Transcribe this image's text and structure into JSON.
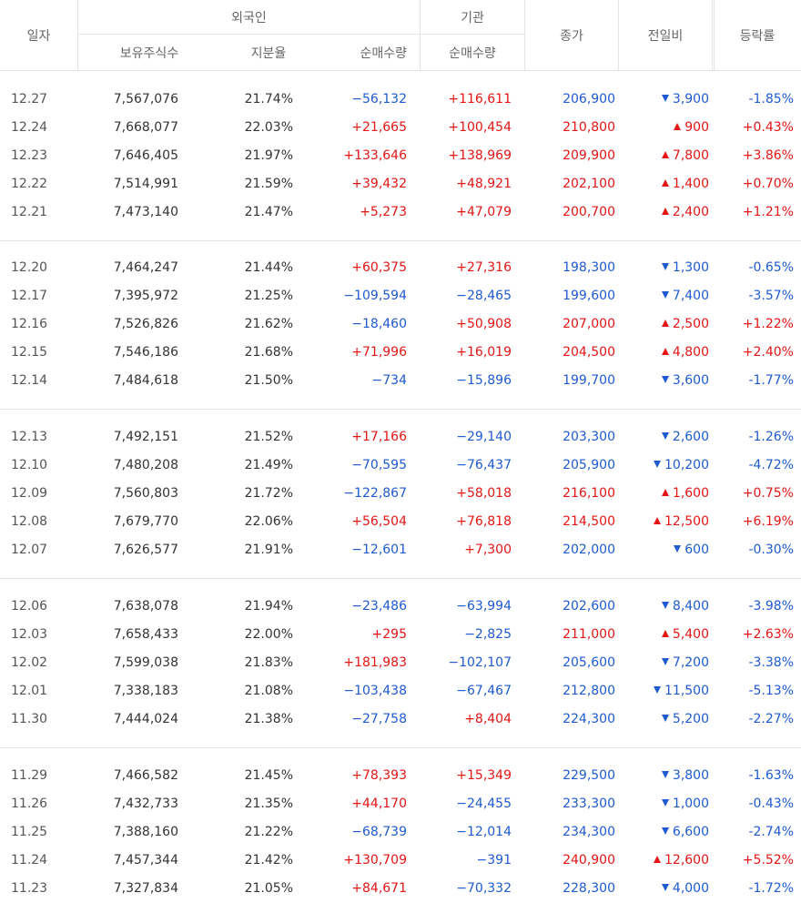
{
  "header": {
    "date": "일자",
    "foreigner_group": "외국인",
    "holdings": "보유주식수",
    "ratio": "지분율",
    "foreign_net": "순매수량",
    "institution_group": "기관",
    "inst_net": "순매수량",
    "close": "종가",
    "change": "전일비",
    "rate": "등락률"
  },
  "colors": {
    "up": "#e31515",
    "down": "#1f5ad0",
    "border": "#e5e5e5"
  },
  "groups": [
    {
      "rows": [
        {
          "date": "12.27",
          "holdings": "7,567,076",
          "ratio": "21.74%",
          "foreign_net": "−56,132",
          "inst_net": "+116,611",
          "close": "206,900",
          "dir": "down",
          "change": "3,900",
          "rate": "-1.85%"
        },
        {
          "date": "12.24",
          "holdings": "7,668,077",
          "ratio": "22.03%",
          "foreign_net": "+21,665",
          "inst_net": "+100,454",
          "close": "210,800",
          "dir": "up",
          "change": "900",
          "rate": "+0.43%"
        },
        {
          "date": "12.23",
          "holdings": "7,646,405",
          "ratio": "21.97%",
          "foreign_net": "+133,646",
          "inst_net": "+138,969",
          "close": "209,900",
          "dir": "up",
          "change": "7,800",
          "rate": "+3.86%"
        },
        {
          "date": "12.22",
          "holdings": "7,514,991",
          "ratio": "21.59%",
          "foreign_net": "+39,432",
          "inst_net": "+48,921",
          "close": "202,100",
          "dir": "up",
          "change": "1,400",
          "rate": "+0.70%"
        },
        {
          "date": "12.21",
          "holdings": "7,473,140",
          "ratio": "21.47%",
          "foreign_net": "+5,273",
          "inst_net": "+47,079",
          "close": "200,700",
          "dir": "up",
          "change": "2,400",
          "rate": "+1.21%"
        }
      ]
    },
    {
      "rows": [
        {
          "date": "12.20",
          "holdings": "7,464,247",
          "ratio": "21.44%",
          "foreign_net": "+60,375",
          "inst_net": "+27,316",
          "close": "198,300",
          "dir": "down",
          "change": "1,300",
          "rate": "-0.65%"
        },
        {
          "date": "12.17",
          "holdings": "7,395,972",
          "ratio": "21.25%",
          "foreign_net": "−109,594",
          "inst_net": "−28,465",
          "close": "199,600",
          "dir": "down",
          "change": "7,400",
          "rate": "-3.57%"
        },
        {
          "date": "12.16",
          "holdings": "7,526,826",
          "ratio": "21.62%",
          "foreign_net": "−18,460",
          "inst_net": "+50,908",
          "close": "207,000",
          "dir": "up",
          "change": "2,500",
          "rate": "+1.22%"
        },
        {
          "date": "12.15",
          "holdings": "7,546,186",
          "ratio": "21.68%",
          "foreign_net": "+71,996",
          "inst_net": "+16,019",
          "close": "204,500",
          "dir": "up",
          "change": "4,800",
          "rate": "+2.40%"
        },
        {
          "date": "12.14",
          "holdings": "7,484,618",
          "ratio": "21.50%",
          "foreign_net": "−734",
          "inst_net": "−15,896",
          "close": "199,700",
          "dir": "down",
          "change": "3,600",
          "rate": "-1.77%"
        }
      ]
    },
    {
      "rows": [
        {
          "date": "12.13",
          "holdings": "7,492,151",
          "ratio": "21.52%",
          "foreign_net": "+17,166",
          "inst_net": "−29,140",
          "close": "203,300",
          "dir": "down",
          "change": "2,600",
          "rate": "-1.26%"
        },
        {
          "date": "12.10",
          "holdings": "7,480,208",
          "ratio": "21.49%",
          "foreign_net": "−70,595",
          "inst_net": "−76,437",
          "close": "205,900",
          "dir": "down",
          "change": "10,200",
          "rate": "-4.72%"
        },
        {
          "date": "12.09",
          "holdings": "7,560,803",
          "ratio": "21.72%",
          "foreign_net": "−122,867",
          "inst_net": "+58,018",
          "close": "216,100",
          "dir": "up",
          "change": "1,600",
          "rate": "+0.75%"
        },
        {
          "date": "12.08",
          "holdings": "7,679,770",
          "ratio": "22.06%",
          "foreign_net": "+56,504",
          "inst_net": "+76,818",
          "close": "214,500",
          "dir": "up",
          "change": "12,500",
          "rate": "+6.19%"
        },
        {
          "date": "12.07",
          "holdings": "7,626,577",
          "ratio": "21.91%",
          "foreign_net": "−12,601",
          "inst_net": "+7,300",
          "close": "202,000",
          "dir": "down",
          "change": "600",
          "rate": "-0.30%"
        }
      ]
    },
    {
      "rows": [
        {
          "date": "12.06",
          "holdings": "7,638,078",
          "ratio": "21.94%",
          "foreign_net": "−23,486",
          "inst_net": "−63,994",
          "close": "202,600",
          "dir": "down",
          "change": "8,400",
          "rate": "-3.98%"
        },
        {
          "date": "12.03",
          "holdings": "7,658,433",
          "ratio": "22.00%",
          "foreign_net": "+295",
          "inst_net": "−2,825",
          "close": "211,000",
          "dir": "up",
          "change": "5,400",
          "rate": "+2.63%"
        },
        {
          "date": "12.02",
          "holdings": "7,599,038",
          "ratio": "21.83%",
          "foreign_net": "+181,983",
          "inst_net": "−102,107",
          "close": "205,600",
          "dir": "down",
          "change": "7,200",
          "rate": "-3.38%"
        },
        {
          "date": "12.01",
          "holdings": "7,338,183",
          "ratio": "21.08%",
          "foreign_net": "−103,438",
          "inst_net": "−67,467",
          "close": "212,800",
          "dir": "down",
          "change": "11,500",
          "rate": "-5.13%"
        },
        {
          "date": "11.30",
          "holdings": "7,444,024",
          "ratio": "21.38%",
          "foreign_net": "−27,758",
          "inst_net": "+8,404",
          "close": "224,300",
          "dir": "down",
          "change": "5,200",
          "rate": "-2.27%"
        }
      ]
    },
    {
      "rows": [
        {
          "date": "11.29",
          "holdings": "7,466,582",
          "ratio": "21.45%",
          "foreign_net": "+78,393",
          "inst_net": "+15,349",
          "close": "229,500",
          "dir": "down",
          "change": "3,800",
          "rate": "-1.63%"
        },
        {
          "date": "11.26",
          "holdings": "7,432,733",
          "ratio": "21.35%",
          "foreign_net": "+44,170",
          "inst_net": "−24,455",
          "close": "233,300",
          "dir": "down",
          "change": "1,000",
          "rate": "-0.43%"
        },
        {
          "date": "11.25",
          "holdings": "7,388,160",
          "ratio": "21.22%",
          "foreign_net": "−68,739",
          "inst_net": "−12,014",
          "close": "234,300",
          "dir": "down",
          "change": "6,600",
          "rate": "-2.74%"
        },
        {
          "date": "11.24",
          "holdings": "7,457,344",
          "ratio": "21.42%",
          "foreign_net": "+130,709",
          "inst_net": "−391",
          "close": "240,900",
          "dir": "up",
          "change": "12,600",
          "rate": "+5.52%"
        },
        {
          "date": "11.23",
          "holdings": "7,327,834",
          "ratio": "21.05%",
          "foreign_net": "+84,671",
          "inst_net": "−70,332",
          "close": "228,300",
          "dir": "down",
          "change": "4,000",
          "rate": "-1.72%"
        }
      ]
    }
  ]
}
